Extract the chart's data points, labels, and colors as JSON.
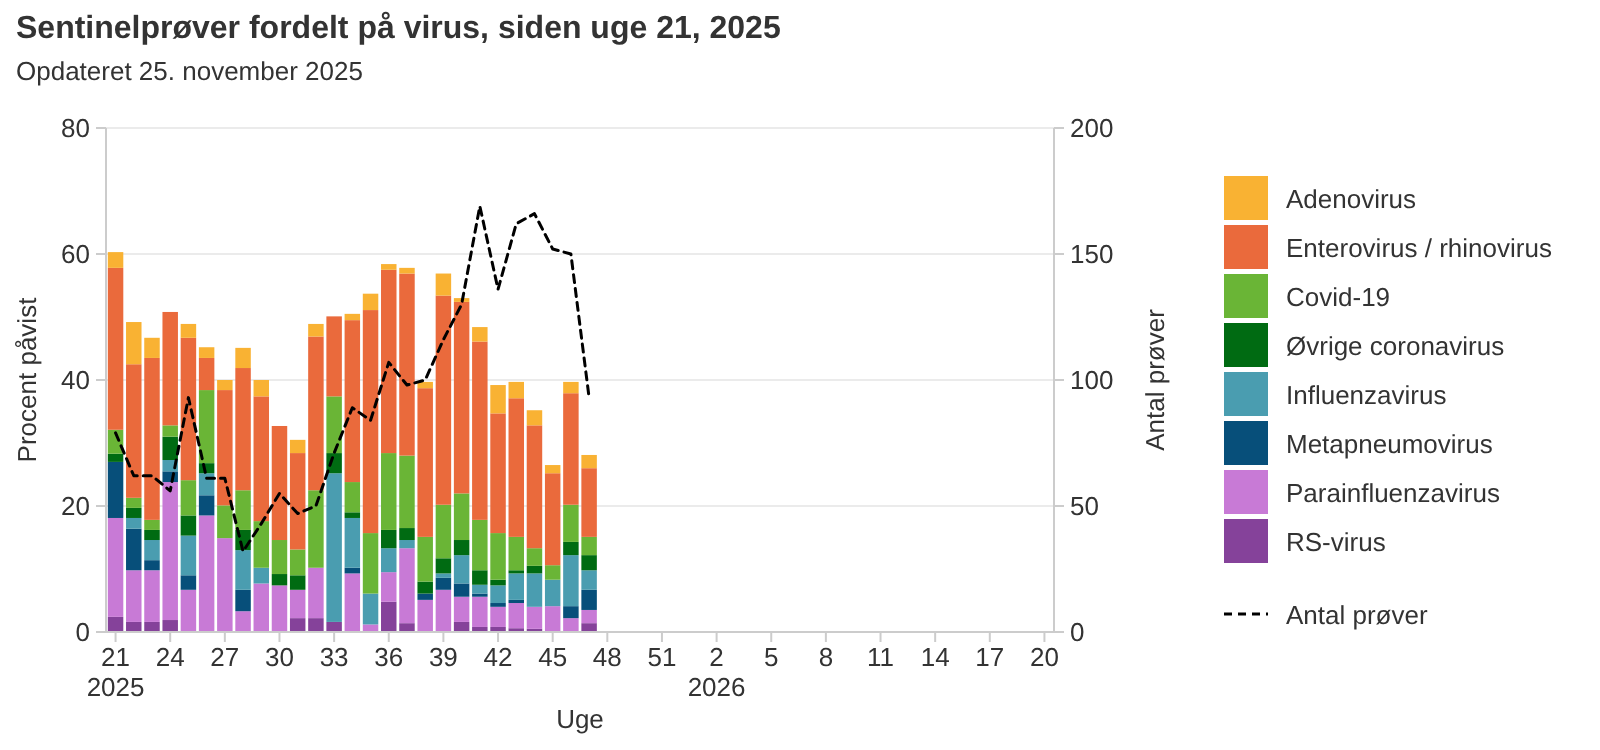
{
  "chart_data": {
    "type": "bar",
    "title": "Sentinelprøver fordelt på virus, siden uge 21, 2025",
    "subtitle": "Opdateret 25. november 2025",
    "xlabel": "Uge",
    "ylabel": "Procent påvist",
    "y2label": "Antal prøver",
    "categories": [
      "21\n2025",
      null,
      null,
      "24",
      null,
      null,
      "27",
      null,
      null,
      "30",
      null,
      null,
      "33",
      null,
      null,
      "36",
      null,
      null,
      "39",
      null,
      null,
      "42",
      null,
      null,
      "45",
      null,
      null,
      "48",
      null,
      null,
      "51",
      null,
      null,
      "2\n2026",
      null,
      null,
      "5",
      null,
      null,
      "8",
      null,
      null,
      "11",
      null,
      null,
      "14",
      null,
      null,
      "17",
      null,
      null,
      "20"
    ],
    "stacked": true,
    "ylim": [
      0,
      80
    ],
    "yticks": [
      0,
      20,
      40,
      60,
      80
    ],
    "y2lim": [
      0,
      200
    ],
    "y2ticks": [
      0,
      50,
      100,
      150,
      200
    ],
    "grid": "y",
    "legend": "right",
    "series": [
      {
        "name": "RS-virus",
        "color": "#85429a",
        "values": [
          2.4,
          1.6,
          1.6,
          1.9,
          0,
          0,
          0,
          0,
          0,
          0,
          2.2,
          2.2,
          1.6,
          0,
          0,
          4.8,
          1.4,
          0,
          0,
          1.6,
          0.8,
          0.8,
          0.6,
          0.5,
          0,
          0,
          1.4,
          null,
          null,
          null,
          null,
          null,
          null,
          null,
          null,
          null,
          null,
          null,
          null,
          null,
          null,
          null,
          null,
          null,
          null,
          null,
          null,
          null,
          null,
          null,
          null,
          null
        ]
      },
      {
        "name": "Parainfluenzavirus",
        "color": "#c87ad6",
        "values": [
          15.7,
          8.2,
          8.2,
          21.9,
          6.7,
          18.5,
          14.9,
          3.3,
          7.7,
          7.4,
          4.5,
          8,
          0,
          9.3,
          1.2,
          4.7,
          11.9,
          5.1,
          6.7,
          4,
          4.8,
          3.2,
          4,
          3.5,
          4.1,
          2.2,
          2.1,
          null,
          null,
          null,
          null,
          null,
          null,
          null,
          null,
          null,
          null,
          null,
          null,
          null,
          null,
          null,
          null,
          null,
          null,
          null,
          null,
          null,
          null,
          null,
          null,
          null
        ]
      },
      {
        "name": "Metapneumovirus",
        "color": "#074f7a",
        "values": [
          8.9,
          6.6,
          1.6,
          1.7,
          2.3,
          3.2,
          0,
          3.4,
          0,
          0,
          0,
          0,
          0,
          0.9,
          0,
          0,
          0,
          1,
          1.9,
          2.1,
          0.5,
          0.6,
          0.5,
          0,
          0,
          1.9,
          3.2,
          null,
          null,
          null,
          null,
          null,
          null,
          null,
          null,
          null,
          null,
          null,
          null,
          null,
          null,
          null,
          null,
          null,
          null,
          null,
          null,
          null,
          null,
          null,
          null,
          null
        ]
      },
      {
        "name": "Influenzavirus",
        "color": "#4a9db0",
        "values": [
          0,
          1.7,
          3.2,
          1.8,
          6.3,
          3.5,
          0,
          6.3,
          2.5,
          0,
          0,
          0,
          23.6,
          7.9,
          4.9,
          3.8,
          1.3,
          0,
          0.7,
          4.5,
          1.4,
          2.8,
          4.2,
          5.3,
          4.2,
          8.1,
          3.1,
          null,
          null,
          null,
          null,
          null,
          null,
          null,
          null,
          null,
          null,
          null,
          null,
          null,
          null,
          null,
          null,
          null,
          null,
          null,
          null,
          null,
          null,
          null,
          null,
          null
        ]
      },
      {
        "name": "Øvrige coronavirus",
        "color": "#006b12",
        "values": [
          1.3,
          1.6,
          1.6,
          3.7,
          3.2,
          1.6,
          0,
          3.2,
          0,
          1.8,
          2.3,
          0,
          3.2,
          0.9,
          0,
          2.9,
          1.9,
          1.9,
          2.4,
          2.4,
          2.3,
          0.9,
          0.5,
          1.2,
          0,
          2.1,
          2.4,
          null,
          null,
          null,
          null,
          null,
          null,
          null,
          null,
          null,
          null,
          null,
          null,
          null,
          null,
          null,
          null,
          null,
          null,
          null,
          null,
          null,
          null,
          null,
          null,
          null
        ]
      },
      {
        "name": "Covid-19",
        "color": "#6ab536",
        "values": [
          3.8,
          1.6,
          1.6,
          1.8,
          5.6,
          11.6,
          5.2,
          6.3,
          7.4,
          5.4,
          4.1,
          12.3,
          9,
          4.8,
          9.6,
          12.2,
          11.5,
          7.1,
          8.5,
          7.4,
          8,
          7.4,
          5.3,
          2.8,
          2.3,
          5.9,
          2.9,
          null,
          null,
          null,
          null,
          null,
          null,
          null,
          null,
          null,
          null,
          null,
          null,
          null,
          null,
          null,
          null,
          null,
          null,
          null,
          null,
          null,
          null,
          null,
          null,
          null
        ]
      },
      {
        "name": "Enterovirus / rhinovirus",
        "color": "#ea6a3c",
        "values": [
          25.7,
          21.2,
          25.7,
          18,
          22.6,
          5.1,
          18.3,
          19.4,
          19.8,
          18.1,
          15.3,
          24.4,
          12.7,
          25.7,
          35.4,
          29.1,
          28.9,
          23.6,
          33.2,
          30.4,
          28.3,
          19,
          22,
          19.5,
          14.6,
          17.7,
          10.9,
          null,
          null,
          null,
          null,
          null,
          null,
          null,
          null,
          null,
          null,
          null,
          null,
          null,
          null,
          null,
          null,
          null,
          null,
          null,
          null,
          null,
          null,
          null,
          null,
          null
        ]
      },
      {
        "name": "Adenovirus",
        "color": "#f9b233",
        "values": [
          2.5,
          6.7,
          3.2,
          0,
          2.2,
          1.7,
          1.6,
          3.2,
          2.6,
          0,
          2.1,
          2,
          0,
          1,
          2.6,
          0.9,
          0.9,
          1,
          3.5,
          0.6,
          2.3,
          4.5,
          2.6,
          2.4,
          1.3,
          1.8,
          2.1,
          null,
          null,
          null,
          null,
          null,
          null,
          null,
          null,
          null,
          null,
          null,
          null,
          null,
          null,
          null,
          null,
          null,
          null,
          null,
          null,
          null,
          null,
          null,
          null,
          null
        ]
      },
      {
        "name": "Antal prøver",
        "type": "line",
        "axis": "y2",
        "color": "#000000",
        "line_style": "dashed",
        "values": [
          79,
          62,
          62,
          56,
          93,
          61,
          61,
          32,
          43,
          55,
          47,
          50,
          71,
          89,
          84,
          107,
          98,
          100,
          116,
          130,
          169,
          136,
          162,
          166,
          152,
          150,
          93,
          null,
          null,
          null,
          null,
          null,
          null,
          null,
          null,
          null,
          null,
          null,
          null,
          null,
          null,
          null,
          null,
          null,
          null,
          null,
          null,
          null,
          null,
          null,
          null,
          null
        ]
      }
    ]
  }
}
